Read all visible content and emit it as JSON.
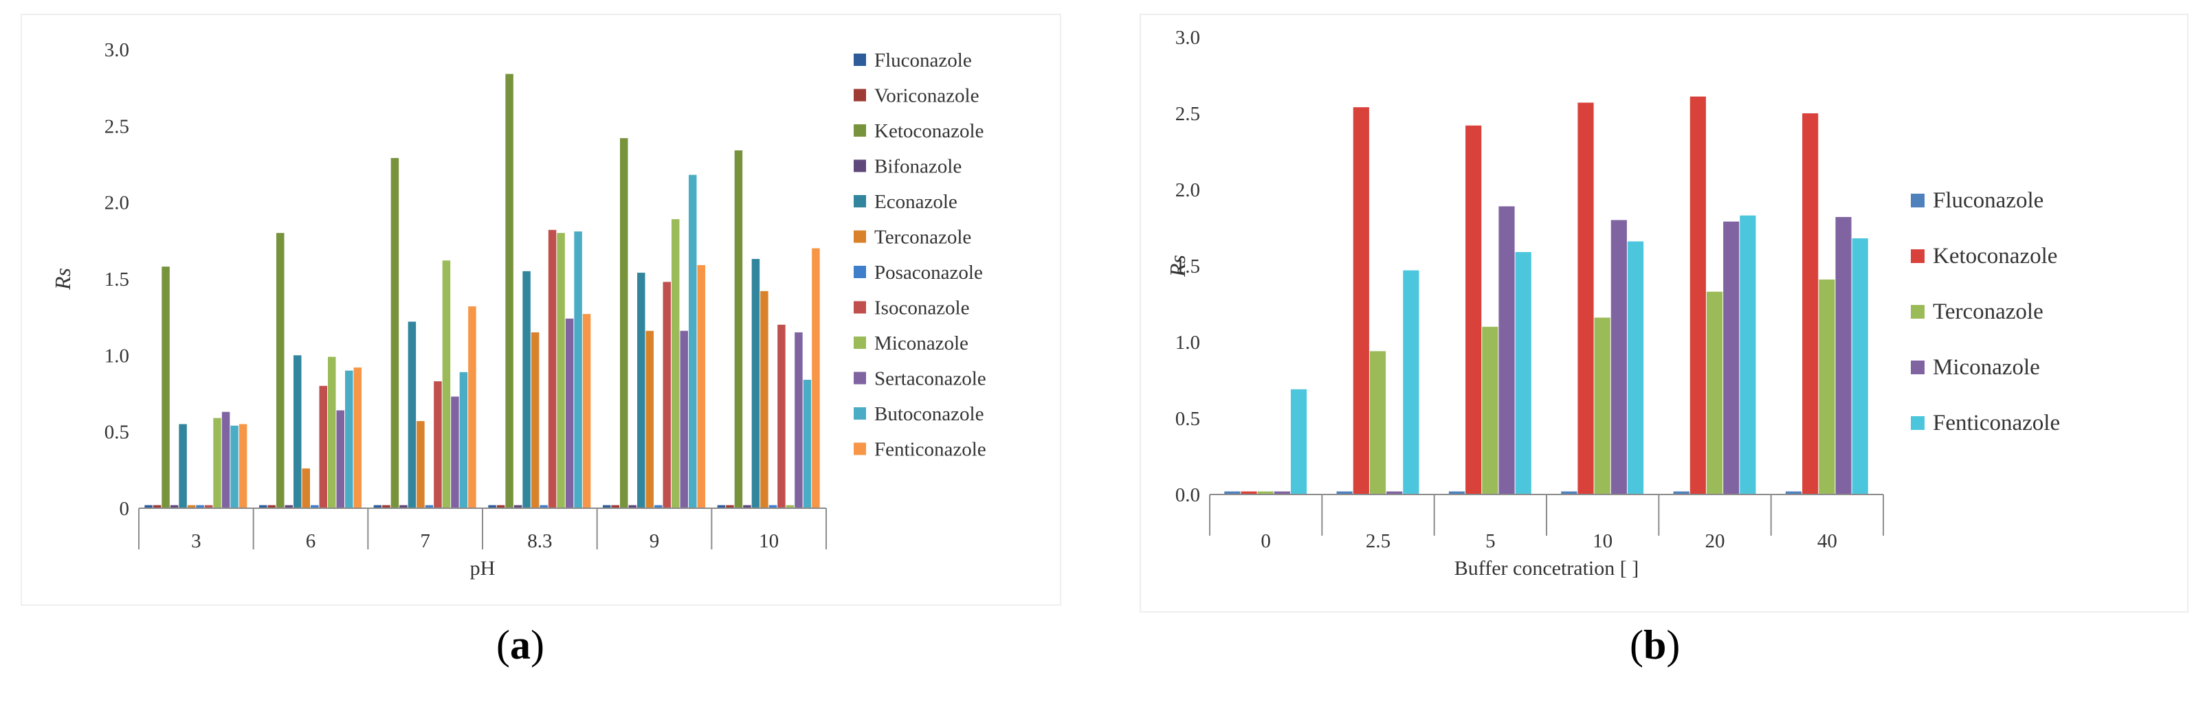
{
  "chart_data": [
    {
      "type": "bar",
      "panel": "a",
      "caption": "a",
      "xlabel": "pH",
      "ylabel": "Rs",
      "ylim": [
        0,
        3.0
      ],
      "yticks": [
        "0",
        "0.5",
        "1.0",
        "1.5",
        "2.0",
        "2.5",
        "3.0"
      ],
      "categories": [
        "3",
        "6",
        "7",
        "8.3",
        "9",
        "10"
      ],
      "legend_position": "right",
      "series": [
        {
          "name": "Fluconazole",
          "color": "#2E5C9A",
          "values": [
            0.02,
            0.02,
            0.02,
            0.02,
            0.02,
            0.02
          ]
        },
        {
          "name": "Voriconazole",
          "color": "#9E3B35",
          "values": [
            0.02,
            0.02,
            0.02,
            0.02,
            0.02,
            0.02
          ]
        },
        {
          "name": "Ketoconazole",
          "color": "#77933C",
          "values": [
            1.58,
            1.8,
            2.29,
            2.84,
            2.42,
            2.34
          ]
        },
        {
          "name": "Bifonazole",
          "color": "#60497A",
          "values": [
            0.02,
            0.02,
            0.02,
            0.02,
            0.02,
            0.02
          ]
        },
        {
          "name": "Econazole",
          "color": "#31859C",
          "values": [
            0.55,
            1.0,
            1.22,
            1.55,
            1.54,
            1.63
          ]
        },
        {
          "name": "Terconazole",
          "color": "#D9822B",
          "values": [
            0.02,
            0.26,
            0.57,
            1.15,
            1.16,
            1.42
          ]
        },
        {
          "name": "Posaconazole",
          "color": "#3F7ECB",
          "values": [
            0.02,
            0.02,
            0.02,
            0.02,
            0.02,
            0.02
          ]
        },
        {
          "name": "Isoconazole",
          "color": "#C0504D",
          "values": [
            0.02,
            0.8,
            0.83,
            1.82,
            1.48,
            1.2
          ]
        },
        {
          "name": "Miconazole",
          "color": "#9BBB59",
          "values": [
            0.59,
            0.99,
            1.62,
            1.8,
            1.89,
            0.02
          ]
        },
        {
          "name": "Sertaconazole",
          "color": "#8064A2",
          "values": [
            0.63,
            0.64,
            0.73,
            1.24,
            1.16,
            1.15
          ]
        },
        {
          "name": "Butoconazole",
          "color": "#4BACC6",
          "values": [
            0.54,
            0.9,
            0.89,
            1.81,
            2.18,
            0.84
          ]
        },
        {
          "name": "Fenticonazole",
          "color": "#F79646",
          "values": [
            0.55,
            0.92,
            1.32,
            1.27,
            1.59,
            1.7
          ]
        }
      ]
    },
    {
      "type": "bar",
      "panel": "b",
      "caption": "b",
      "xlabel": "Buffer concetration [ ]",
      "ylabel": "Rs",
      "ylim": [
        0,
        3.0
      ],
      "yticks": [
        "0.0",
        "0.5",
        "1.0",
        "1.5",
        "2.0",
        "2.5",
        "3.0"
      ],
      "categories": [
        "0",
        "2.5",
        "5",
        "10",
        "20",
        "40"
      ],
      "legend_position": "right",
      "series": [
        {
          "name": "Fluconazole",
          "color": "#4F81BD",
          "values": [
            0.02,
            0.02,
            0.02,
            0.02,
            0.02,
            0.02
          ]
        },
        {
          "name": "Ketoconazole",
          "color": "#D9413B",
          "values": [
            0.02,
            2.54,
            2.42,
            2.57,
            2.61,
            2.5
          ]
        },
        {
          "name": "Terconazole",
          "color": "#9BBB59",
          "values": [
            0.02,
            0.94,
            1.1,
            1.16,
            1.33,
            1.41
          ]
        },
        {
          "name": "Miconazole",
          "color": "#8064A2",
          "values": [
            0.02,
            0.02,
            1.89,
            1.8,
            1.79,
            1.82
          ]
        },
        {
          "name": "Fenticonazole",
          "color": "#4BC6DC",
          "values": [
            0.69,
            1.47,
            1.59,
            1.66,
            1.83,
            1.68
          ]
        }
      ]
    }
  ]
}
